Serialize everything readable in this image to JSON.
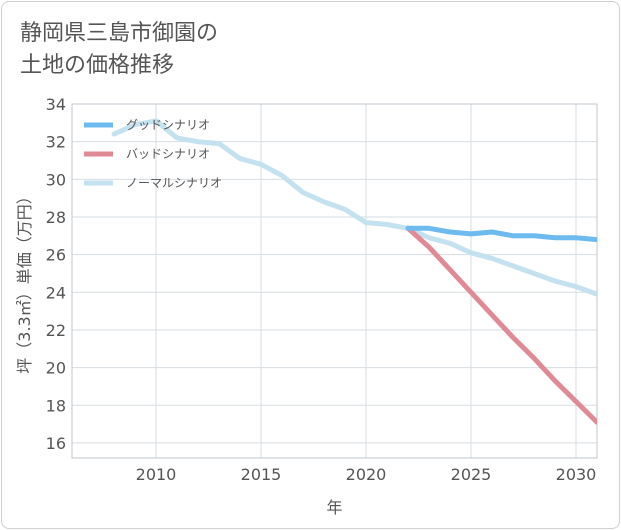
{
  "title_lines": [
    "静岡県三島市御園の",
    "土地の価格推移"
  ],
  "chart_data": {
    "type": "line",
    "title": "静岡県三島市御園の土地の価格推移",
    "xlabel": "年",
    "ylabel": "坪（3.3㎡）単価（万円）",
    "xlim": [
      2006,
      2031
    ],
    "ylim": [
      15.2,
      34
    ],
    "x_ticks": [
      2010,
      2015,
      2020,
      2025,
      2030
    ],
    "y_ticks": [
      16,
      18,
      20,
      22,
      24,
      26,
      28,
      30,
      32,
      34
    ],
    "grid": true,
    "legend_position": "top-left",
    "series": [
      {
        "name": "グッドシナリオ",
        "color": "#6dbbee",
        "x": [
          2022,
          2023,
          2024,
          2025,
          2026,
          2027,
          2028,
          2029,
          2030,
          2031
        ],
        "values": [
          27.4,
          27.4,
          27.2,
          27.1,
          27.2,
          27.0,
          27.0,
          26.9,
          26.9,
          26.8
        ]
      },
      {
        "name": "バッドシナリオ",
        "color": "#e08a96",
        "x": [
          2022,
          2023,
          2024,
          2025,
          2026,
          2027,
          2028,
          2029,
          2030,
          2031
        ],
        "values": [
          27.4,
          26.4,
          25.2,
          24.0,
          22.8,
          21.6,
          20.5,
          19.3,
          18.2,
          17.1
        ]
      },
      {
        "name": "ノーマルシナリオ",
        "color": "#c4e1ef",
        "x": [
          2008,
          2009,
          2010,
          2011,
          2012,
          2013,
          2014,
          2015,
          2016,
          2017,
          2018,
          2019,
          2020,
          2021,
          2022,
          2023,
          2024,
          2025,
          2026,
          2027,
          2028,
          2029,
          2030,
          2031
        ],
        "values": [
          32.4,
          32.9,
          33.1,
          32.2,
          32.0,
          31.9,
          31.1,
          30.8,
          30.2,
          29.3,
          28.8,
          28.4,
          27.7,
          27.6,
          27.4,
          26.9,
          26.6,
          26.1,
          25.8,
          25.4,
          25.0,
          24.6,
          24.3,
          23.9
        ]
      }
    ]
  }
}
